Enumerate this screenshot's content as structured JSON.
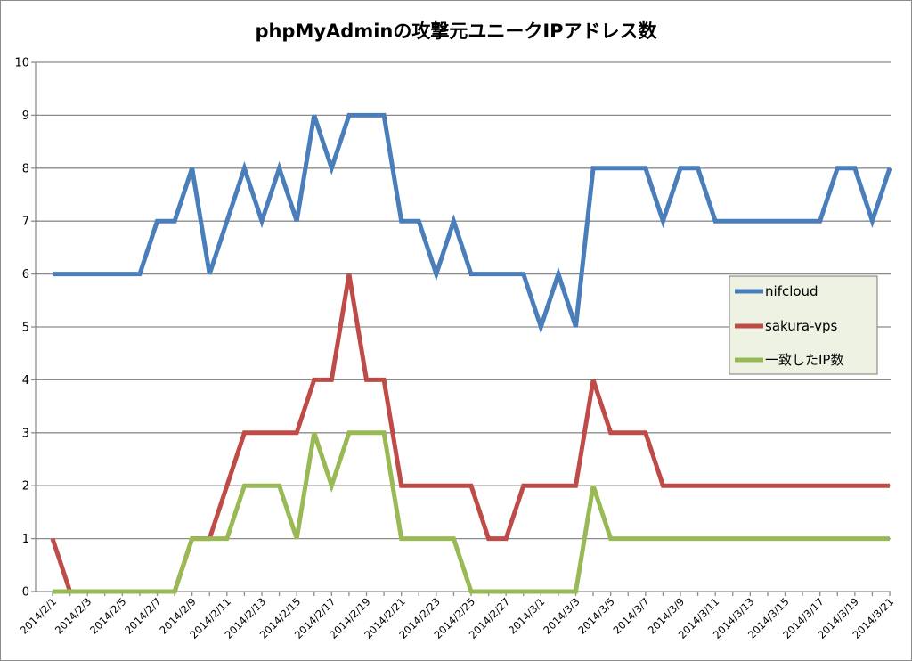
{
  "chart_data": {
    "type": "line",
    "title": "phpMyAdminの攻撃元ユニークIPアドレス数",
    "xlabel": "",
    "ylabel": "",
    "ylim": [
      0,
      10
    ],
    "yticks": [
      "0",
      "1",
      "2",
      "3",
      "4",
      "5",
      "6",
      "7",
      "8",
      "9",
      "10"
    ],
    "grid": true,
    "legend_position": "right",
    "x_tick_labels": [
      "2014/2/1",
      "2014/2/3",
      "2014/2/5",
      "2014/2/7",
      "2014/2/9",
      "2014/2/11",
      "2014/2/13",
      "2014/2/15",
      "2014/2/17",
      "2014/2/19",
      "2014/2/21",
      "2014/2/23",
      "2014/2/25",
      "2014/2/27",
      "2014/3/1",
      "2014/3/3",
      "2014/3/5",
      "2014/3/7",
      "2014/3/9",
      "2014/3/11",
      "2014/3/13",
      "2014/3/15",
      "2014/3/17",
      "2014/3/19",
      "2014/3/21"
    ],
    "x": [
      "2014/2/1",
      "2014/2/2",
      "2014/2/3",
      "2014/2/4",
      "2014/2/5",
      "2014/2/6",
      "2014/2/7",
      "2014/2/8",
      "2014/2/9",
      "2014/2/10",
      "2014/2/11",
      "2014/2/12",
      "2014/2/13",
      "2014/2/14",
      "2014/2/15",
      "2014/2/16",
      "2014/2/17",
      "2014/2/18",
      "2014/2/19",
      "2014/2/20",
      "2014/2/21",
      "2014/2/22",
      "2014/2/23",
      "2014/2/24",
      "2014/2/25",
      "2014/2/26",
      "2014/2/27",
      "2014/2/28",
      "2014/3/1",
      "2014/3/2",
      "2014/3/3",
      "2014/3/4",
      "2014/3/5",
      "2014/3/6",
      "2014/3/7",
      "2014/3/8",
      "2014/3/9",
      "2014/3/10",
      "2014/3/11",
      "2014/3/12",
      "2014/3/13",
      "2014/3/14",
      "2014/3/15",
      "2014/3/16",
      "2014/3/17",
      "2014/3/18",
      "2014/3/19",
      "2014/3/20",
      "2014/3/21"
    ],
    "series": [
      {
        "name": "nifcloud",
        "color": "#4a7ebb",
        "values": [
          6,
          6,
          6,
          6,
          6,
          6,
          7,
          7,
          8,
          6,
          7,
          8,
          7,
          8,
          7,
          9,
          8,
          9,
          9,
          9,
          7,
          7,
          6,
          7,
          6,
          6,
          6,
          6,
          5,
          6,
          5,
          8,
          8,
          8,
          8,
          7,
          8,
          8,
          7,
          7,
          7,
          7,
          7,
          7,
          7,
          8,
          8,
          7,
          8
        ]
      },
      {
        "name": "sakura-vps",
        "color": "#be4b48",
        "values": [
          1,
          0,
          0,
          0,
          0,
          0,
          0,
          0,
          1,
          1,
          2,
          3,
          3,
          3,
          3,
          4,
          4,
          6,
          4,
          4,
          2,
          2,
          2,
          2,
          2,
          1,
          1,
          2,
          2,
          2,
          2,
          4,
          3,
          3,
          3,
          2,
          2,
          2,
          2,
          2,
          2,
          2,
          2,
          2,
          2,
          2,
          2,
          2,
          2
        ]
      },
      {
        "name": "一致したIP数",
        "color": "#98b954",
        "values": [
          0,
          0,
          0,
          0,
          0,
          0,
          0,
          0,
          1,
          1,
          1,
          2,
          2,
          2,
          1,
          3,
          2,
          3,
          3,
          3,
          1,
          1,
          1,
          1,
          0,
          0,
          0,
          0,
          0,
          0,
          0,
          2,
          1,
          1,
          1,
          1,
          1,
          1,
          1,
          1,
          1,
          1,
          1,
          1,
          1,
          1,
          1,
          1,
          1
        ]
      }
    ]
  }
}
